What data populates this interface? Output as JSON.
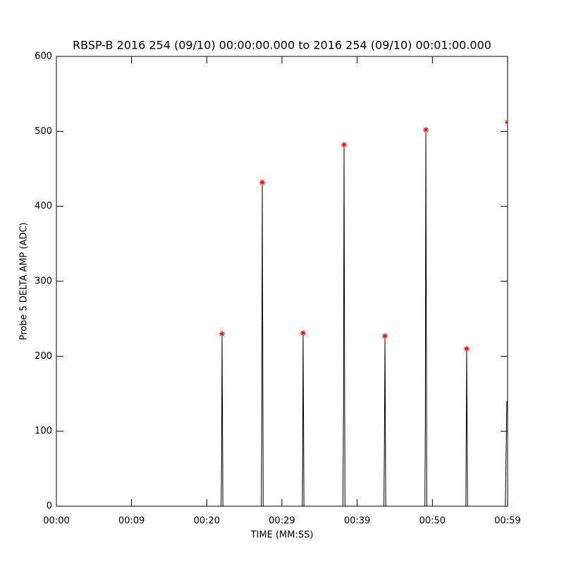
{
  "chart_data": {
    "type": "line",
    "title": "RBSP-B 2016 254 (09/10) 00:00:00.000 to 2016 254 (09/10) 00:01:00.000",
    "xlabel": "TIME (MM:SS)",
    "ylabel": "Probe 5 DELTA AMP (ADC)",
    "xlim": [
      0,
      60
    ],
    "ylim": [
      0,
      600
    ],
    "xticks": [
      {
        "value": 0,
        "label": "00:00"
      },
      {
        "value": 9.99,
        "label": "00:09"
      },
      {
        "value": 20,
        "label": "00:20"
      },
      {
        "value": 29.99,
        "label": "00:29"
      },
      {
        "value": 39.99,
        "label": "00:39"
      },
      {
        "value": 50,
        "label": "00:50"
      },
      {
        "value": 59.99,
        "label": "00:59"
      }
    ],
    "yticks": [
      0,
      100,
      200,
      300,
      400,
      500,
      600
    ],
    "series": [
      {
        "color": "#000000",
        "marker": "none",
        "x": [
          0,
          21.9,
          21.97,
          22.03,
          22.08,
          22.14,
          27.25,
          27.32,
          27.38,
          27.43,
          27.5,
          32.7,
          32.75,
          32.81,
          32.86,
          32.92,
          38.1,
          38.18,
          38.25,
          38.3,
          38.37,
          43.55,
          43.62,
          43.69,
          43.74,
          43.8,
          49.0,
          49.06,
          49.13,
          49.18,
          49.25,
          54.45,
          54.5,
          54.56,
          54.61,
          54.68,
          59.7,
          59.8,
          59.9,
          60
        ],
        "values": [
          0,
          0,
          58,
          230,
          132,
          0,
          0,
          135,
          432,
          247,
          0,
          0,
          70,
          231,
          128,
          0,
          0,
          128,
          482,
          285,
          0,
          0,
          83,
          227,
          122,
          0,
          0,
          110,
          502,
          308,
          0,
          0,
          92,
          210,
          110,
          0,
          0,
          70,
          140,
          140
        ]
      },
      {
        "color": "#ff0000",
        "marker": "asterisk",
        "x": [
          22.03,
          27.38,
          32.81,
          38.25,
          43.69,
          49.13,
          54.56,
          60
        ],
        "values": [
          230,
          432,
          231,
          482,
          227,
          502,
          210,
          512
        ]
      }
    ]
  }
}
